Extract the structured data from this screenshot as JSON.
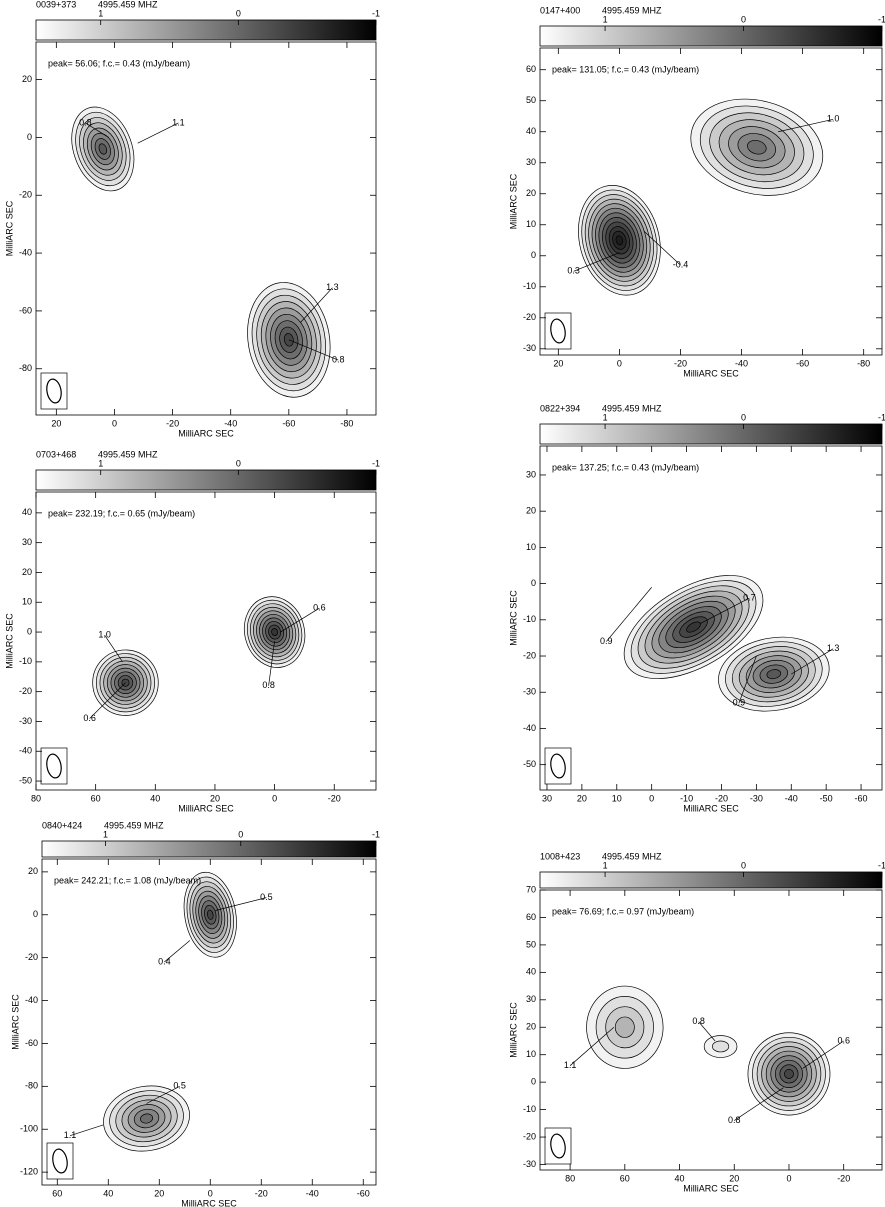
{
  "chart_data": [
    {
      "type": "contour",
      "title": "0039+373",
      "frequency": "4995.459 MHZ",
      "note": "peak= 56.06;   f.c.= 0.43  (mJy/beam)",
      "xlabel": "MilliARC SEC",
      "ylabel": "MilliARC SEC",
      "xlim": [
        27,
        -90
      ],
      "ylim": [
        -96,
        33
      ],
      "xticks": [
        20,
        0,
        -20,
        -40,
        -60,
        -80
      ],
      "yticks": [
        20,
        0,
        -20,
        -40,
        -60,
        -80
      ],
      "colorbar": {
        "lim": [
          1.47,
          -1
        ],
        "ticks": [
          1,
          0,
          -1
        ]
      },
      "annotations": [
        "0.8",
        "1.1",
        "1.3",
        "0.8"
      ]
    },
    {
      "type": "contour",
      "title": "0147+400",
      "frequency": "4995.459 MHZ",
      "note": "peak= 131.05;   f.c.= 0.43  (mJy/beam)",
      "xlabel": "MilliARC SEC",
      "ylabel": "MilliARC SEC",
      "xlim": [
        26,
        -86
      ],
      "ylim": [
        -32,
        67
      ],
      "xticks": [
        20,
        0,
        -20,
        -40,
        -60,
        -80
      ],
      "yticks": [
        60,
        50,
        40,
        30,
        20,
        10,
        0,
        -10,
        -20,
        -30
      ],
      "colorbar": {
        "lim": [
          1.47,
          -1
        ],
        "ticks": [
          1,
          0,
          -1
        ]
      },
      "annotations": [
        "1.0",
        "0.3",
        "-0.4"
      ]
    },
    {
      "type": "contour",
      "title": "0703+468",
      "frequency": "4995.459 MHZ",
      "note": "peak= 232.19;   f.c.= 0.65  (mJy/beam)",
      "xlabel": "MilliARC SEC",
      "ylabel": "MilliARC SEC",
      "xlim": [
        80,
        -34
      ],
      "ylim": [
        -53,
        47
      ],
      "xticks": [
        80,
        60,
        40,
        20,
        0,
        -20
      ],
      "yticks": [
        40,
        30,
        20,
        10,
        0,
        -10,
        -20,
        -30,
        -40,
        -50
      ],
      "colorbar": {
        "lim": [
          1.47,
          -1
        ],
        "ticks": [
          1,
          0,
          -1
        ]
      },
      "annotations": [
        "1.0",
        "0.6",
        "0.6",
        "0.8"
      ]
    },
    {
      "type": "contour",
      "title": "0822+394",
      "frequency": "4995.459 MHZ",
      "note": "peak= 137.25;   f.c.= 0.43  (mJy/beam)",
      "xlabel": "MilliARC SEC",
      "ylabel": "MilliARC SEC",
      "xlim": [
        32,
        -66
      ],
      "ylim": [
        -57,
        38
      ],
      "xticks": [
        30,
        20,
        10,
        0,
        -10,
        -20,
        -30,
        -40,
        -50,
        -60
      ],
      "yticks": [
        30,
        20,
        10,
        0,
        -10,
        -20,
        -30,
        -40,
        -50
      ],
      "colorbar": {
        "lim": [
          1.47,
          -1
        ],
        "ticks": [
          1,
          0,
          -1
        ]
      },
      "annotations": [
        "0.9",
        "0.7",
        "1.3",
        "0.9"
      ]
    },
    {
      "type": "contour",
      "title": "0840+424",
      "frequency": "4995.459 MHZ",
      "note": "peak= 242.21;   f.c.= 1.08  (mJy/beam)",
      "xlabel": "MilliARC SEC",
      "ylabel": "MilliARC SEC",
      "xlim": [
        66,
        -65
      ],
      "ylim": [
        -126,
        26
      ],
      "xticks": [
        60,
        40,
        20,
        0,
        -20,
        -40,
        -60
      ],
      "yticks": [
        20,
        0,
        -20,
        -40,
        -60,
        -80,
        -100,
        -120
      ],
      "colorbar": {
        "lim": [
          1.47,
          -1
        ],
        "ticks": [
          1,
          0,
          -1
        ]
      },
      "annotations": [
        "0.5",
        "0.4",
        "0.5",
        "1.1"
      ]
    },
    {
      "type": "contour",
      "title": "1008+423",
      "frequency": "4995.459 MHZ",
      "note": "peak= 76.69;   f.c.= 0.97  (mJy/beam)",
      "xlabel": "MilliARC SEC",
      "ylabel": "MilliARC SEC",
      "xlim": [
        91,
        -34
      ],
      "ylim": [
        -32,
        70
      ],
      "xticks": [
        80,
        60,
        40,
        20,
        0,
        -20
      ],
      "yticks": [
        70,
        60,
        50,
        40,
        30,
        20,
        10,
        0,
        -10,
        -20,
        -30
      ],
      "colorbar": {
        "lim": [
          1.47,
          -1
        ],
        "ticks": [
          1,
          0,
          -1
        ]
      },
      "annotations": [
        "1.1",
        "0.8",
        "0.6",
        "0.8"
      ]
    }
  ]
}
